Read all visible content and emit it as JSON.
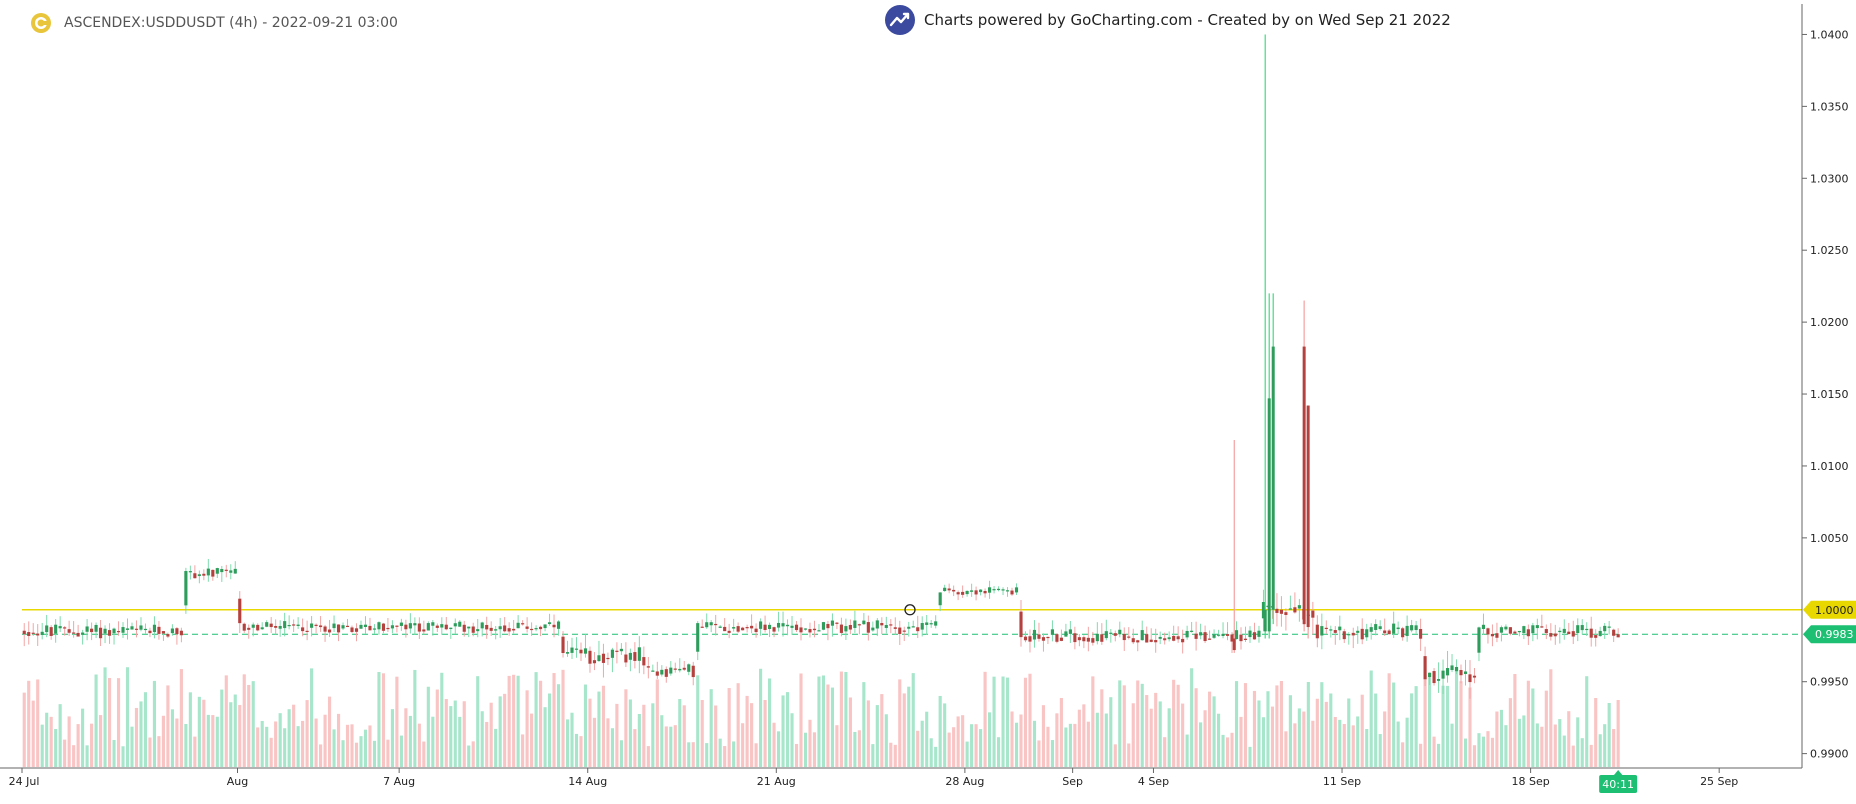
{
  "header": {
    "symbol_line": "ASCENDEX:USDDUSDT (4h) - 2022-09-21 03:00",
    "logo_icon": "coin-logo-icon"
  },
  "watermark": {
    "text": "Charts powered by GoCharting.com - Created by  on Wed Sep 21 2022",
    "icon": "trend-up-icon"
  },
  "colors": {
    "up": "#2e9d5c",
    "down": "#b5413f",
    "volume_up": "#a8e6cc",
    "volume_down": "#f9c4c4",
    "spike_up": "#3ddc84",
    "spike_down": "#f5a0a0",
    "level_line": "#e8d800",
    "last_price": "#1dbf73",
    "axis_text": "#222222"
  },
  "chart_data": {
    "type": "candlestick",
    "title": "ASCENDEX:USDDUSDT (4h)",
    "x_ticks": [
      "24 Jul",
      "Aug",
      "7 Aug",
      "14 Aug",
      "21 Aug",
      "28 Aug",
      "Sep",
      "4 Sep",
      "11 Sep",
      "18 Sep",
      "25 Sep"
    ],
    "y_ticks": [
      "1.0400",
      "1.0350",
      "1.0300",
      "1.0250",
      "1.0200",
      "1.0150",
      "1.0100",
      "1.0050",
      "0.9950",
      "0.9900"
    ],
    "ylim": [
      0.989,
      1.0417
    ],
    "date_range": [
      "2022-07-24",
      "2022-09-28"
    ],
    "last_date": "2022-09-21",
    "level_price": 1.0,
    "level_label": "1.0000",
    "last_price": 0.9983,
    "last_price_label": "0.9983",
    "countdown_label": "40:11",
    "segments": [
      {
        "start": "2022-07-24",
        "end": "2022-07-30",
        "level": 0.9985,
        "amp": 0.0007
      },
      {
        "start": "2022-07-30",
        "end": "2022-08-01",
        "level": 1.0025,
        "amp": 0.0006
      },
      {
        "start": "2022-08-01",
        "end": "2022-08-13",
        "level": 0.9988,
        "amp": 0.0006
      },
      {
        "start": "2022-08-13",
        "end": "2022-08-16",
        "level": 0.9968,
        "amp": 0.0009
      },
      {
        "start": "2022-08-16",
        "end": "2022-08-18",
        "level": 0.9958,
        "amp": 0.0007
      },
      {
        "start": "2022-08-18",
        "end": "2022-08-27",
        "level": 0.9988,
        "amp": 0.0007
      },
      {
        "start": "2022-08-27",
        "end": "2022-08-30",
        "level": 1.0013,
        "amp": 0.0004
      },
      {
        "start": "2022-08-30",
        "end": "2022-09-08",
        "level": 0.9982,
        "amp": 0.0007
      },
      {
        "start": "2022-09-08",
        "end": "2022-09-10",
        "level": 1.0,
        "amp": 0.001
      },
      {
        "start": "2022-09-10",
        "end": "2022-09-14",
        "level": 0.9985,
        "amp": 0.0008
      },
      {
        "start": "2022-09-14",
        "end": "2022-09-16",
        "level": 0.9955,
        "amp": 0.001
      },
      {
        "start": "2022-09-16",
        "end": "2022-09-21",
        "level": 0.9985,
        "amp": 0.0007
      }
    ],
    "spikes": [
      {
        "date": "2022-09-07",
        "open": 0.998,
        "high": 1.0118,
        "low": 0.997,
        "close": 0.9972
      },
      {
        "date": "2022-09-08",
        "open": 0.9985,
        "high": 1.04,
        "low": 0.998,
        "close": 1.0
      },
      {
        "date": "2022-09-08",
        "open": 0.9985,
        "high": 1.022,
        "low": 0.998,
        "close": 1.0147
      },
      {
        "date": "2022-09-08",
        "open": 1.0,
        "high": 1.022,
        "low": 0.999,
        "close": 1.0183
      },
      {
        "date": "2022-09-09",
        "open": 1.0183,
        "high": 1.0215,
        "low": 0.9985,
        "close": 0.999
      },
      {
        "date": "2022-09-09",
        "open": 1.0142,
        "high": 1.0142,
        "low": 0.998,
        "close": 0.9988
      }
    ]
  }
}
